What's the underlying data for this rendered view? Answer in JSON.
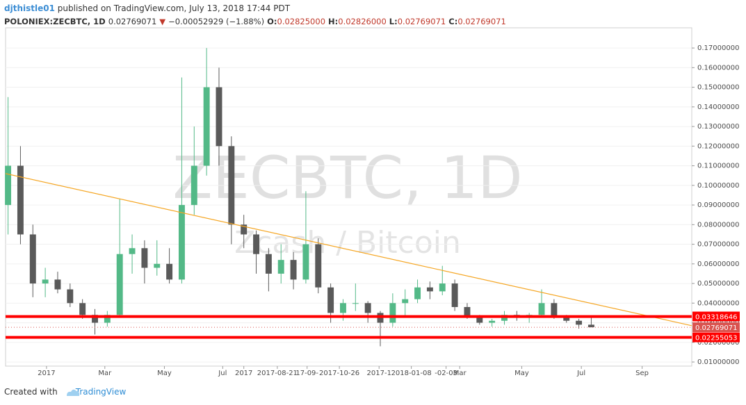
{
  "header": {
    "author": "djthistle01",
    "published": "published on TradingView.com, July 13, 2018 17:44 PDT",
    "symbol": "POLONIEX:ZECBTC, 1D",
    "last": "0.02769071",
    "arrow": "▼",
    "change": "−0.00052929 (−1.88%)",
    "o_label": "O:",
    "o": "0.02825000",
    "h_label": "H:",
    "h": "0.02826000",
    "l_label": "L:",
    "l": "0.02769071",
    "c_label": "C:",
    "c": "0.02769071"
  },
  "footer": {
    "created": "Created with",
    "brand": "TradingView"
  },
  "chart_data": {
    "type": "candlestick",
    "watermark": "ZECBTC, 1D",
    "watermark_sub": "Zcash / Bitcoin",
    "up_color": "#53b987",
    "down_color": "#5a5a5a",
    "xlim": [
      -0.2,
      55.1
    ],
    "ylim": [
      0.0079,
      0.1803
    ],
    "xticks": [
      {
        "value": 3.1,
        "label": "2017"
      },
      {
        "value": 7.8,
        "label": "Mar"
      },
      {
        "value": 12.6,
        "label": "May"
      },
      {
        "value": 17.3,
        "label": "Jul"
      },
      {
        "value": 19.0,
        "label": "2017"
      },
      {
        "value": 21.7,
        "label": "2017-08-21"
      },
      {
        "value": 24.1,
        "label": "17-09-"
      },
      {
        "value": 26.7,
        "label": "2017-10-26"
      },
      {
        "value": 29.9,
        "label": "2017-1"
      },
      {
        "value": 32.5,
        "label": "2018-01-08"
      },
      {
        "value": 35.3,
        "label": "-02-03"
      },
      {
        "value": 36.4,
        "label": "Mar"
      },
      {
        "value": 41.4,
        "label": "May"
      },
      {
        "value": 46.2,
        "label": "Jul"
      },
      {
        "value": 51.1,
        "label": "Sep"
      }
    ],
    "yticks": [
      {
        "value": 0.01,
        "label": "0.01000000"
      },
      {
        "value": 0.02,
        "label": "0.02000000"
      },
      {
        "value": 0.03,
        "label": "0.03000000"
      },
      {
        "value": 0.04,
        "label": "0.04000000"
      },
      {
        "value": 0.05,
        "label": "0.05000000"
      },
      {
        "value": 0.06,
        "label": "0.06000000"
      },
      {
        "value": 0.07,
        "label": "0.07000000"
      },
      {
        "value": 0.08,
        "label": "0.08000000"
      },
      {
        "value": 0.09,
        "label": "0.09000000"
      },
      {
        "value": 0.1,
        "label": "0.10000000"
      },
      {
        "value": 0.11,
        "label": "0.11000000"
      },
      {
        "value": 0.12,
        "label": "0.12000000"
      },
      {
        "value": 0.13,
        "label": "0.13000000"
      },
      {
        "value": 0.14,
        "label": "0.14000000"
      },
      {
        "value": 0.15,
        "label": "0.15000000"
      },
      {
        "value": 0.16,
        "label": "0.16000000"
      },
      {
        "value": 0.17,
        "label": "0.17000000"
      }
    ],
    "candles": [
      [
        0.09,
        0.145,
        0.075,
        0.11
      ],
      [
        0.11,
        0.12,
        0.07,
        0.075
      ],
      [
        0.075,
        0.08,
        0.043,
        0.05
      ],
      [
        0.05,
        0.058,
        0.043,
        0.052
      ],
      [
        0.052,
        0.056,
        0.045,
        0.047
      ],
      [
        0.047,
        0.05,
        0.038,
        0.04
      ],
      [
        0.04,
        0.042,
        0.032,
        0.034
      ],
      [
        0.034,
        0.037,
        0.024,
        0.03
      ],
      [
        0.03,
        0.036,
        0.028,
        0.034
      ],
      [
        0.034,
        0.093,
        0.033,
        0.065
      ],
      [
        0.065,
        0.075,
        0.055,
        0.068
      ],
      [
        0.068,
        0.072,
        0.05,
        0.058
      ],
      [
        0.058,
        0.072,
        0.054,
        0.06
      ],
      [
        0.06,
        0.068,
        0.05,
        0.052
      ],
      [
        0.052,
        0.155,
        0.05,
        0.09
      ],
      [
        0.09,
        0.13,
        0.085,
        0.11
      ],
      [
        0.11,
        0.17,
        0.105,
        0.15
      ],
      [
        0.15,
        0.16,
        0.11,
        0.12
      ],
      [
        0.12,
        0.125,
        0.07,
        0.08
      ],
      [
        0.08,
        0.085,
        0.068,
        0.075
      ],
      [
        0.075,
        0.077,
        0.055,
        0.065
      ],
      [
        0.065,
        0.068,
        0.046,
        0.055
      ],
      [
        0.055,
        0.07,
        0.05,
        0.062
      ],
      [
        0.062,
        0.066,
        0.047,
        0.052
      ],
      [
        0.052,
        0.097,
        0.05,
        0.07
      ],
      [
        0.07,
        0.073,
        0.045,
        0.048
      ],
      [
        0.048,
        0.05,
        0.03,
        0.035
      ],
      [
        0.035,
        0.042,
        0.031,
        0.04
      ],
      [
        0.04,
        0.05,
        0.036,
        0.04
      ],
      [
        0.04,
        0.041,
        0.03,
        0.035
      ],
      [
        0.035,
        0.036,
        0.018,
        0.03
      ],
      [
        0.03,
        0.045,
        0.028,
        0.04
      ],
      [
        0.04,
        0.047,
        0.033,
        0.042
      ],
      [
        0.042,
        0.052,
        0.04,
        0.048
      ],
      [
        0.048,
        0.051,
        0.042,
        0.046
      ],
      [
        0.046,
        0.059,
        0.044,
        0.05
      ],
      [
        0.05,
        0.052,
        0.036,
        0.038
      ],
      [
        0.038,
        0.04,
        0.032,
        0.033
      ],
      [
        0.033,
        0.034,
        0.029,
        0.03
      ],
      [
        0.03,
        0.032,
        0.028,
        0.031
      ],
      [
        0.031,
        0.036,
        0.029,
        0.034
      ],
      [
        0.034,
        0.036,
        0.031,
        0.033
      ],
      [
        0.033,
        0.035,
        0.03,
        0.034
      ],
      [
        0.034,
        0.047,
        0.033,
        0.04
      ],
      [
        0.04,
        0.042,
        0.032,
        0.033
      ],
      [
        0.033,
        0.034,
        0.03,
        0.031
      ],
      [
        0.031,
        0.032,
        0.027,
        0.029
      ],
      [
        0.029,
        0.033,
        0.02769071,
        0.02769071
      ]
    ],
    "trendline": {
      "color": "#f5a623",
      "x": [
        -0.2,
        55.1
      ],
      "y": [
        0.106,
        0.0285
      ]
    },
    "levels": [
      {
        "value": 0.03318646,
        "color": "#ff0000"
      },
      {
        "value": 0.02255053,
        "color": "#ff0000"
      }
    ],
    "last_price": {
      "value": 0.02769071,
      "color": "#d9534f"
    }
  }
}
